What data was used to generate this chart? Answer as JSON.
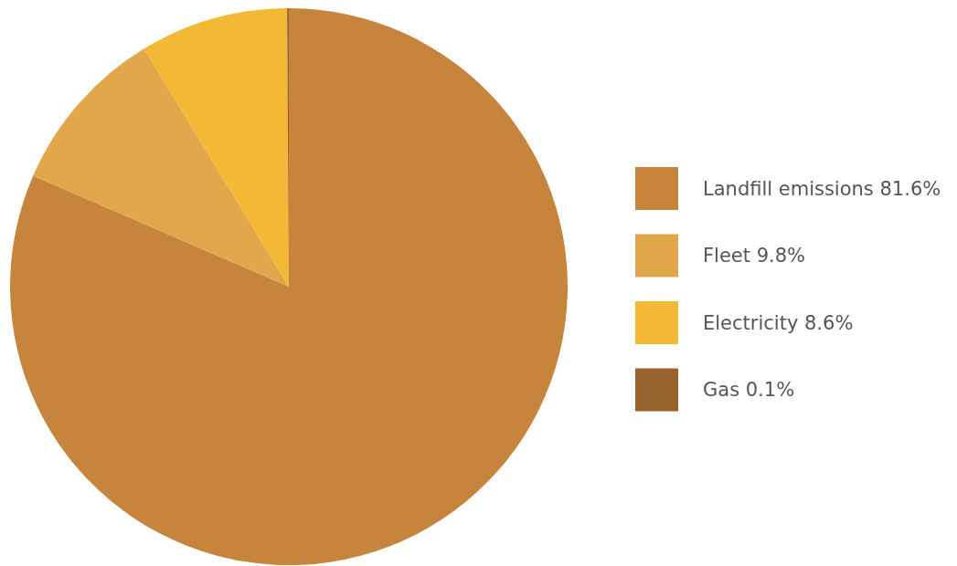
{
  "chart_data": {
    "type": "pie",
    "categories": [
      "Landfill emissions 81.6%",
      "Fleet 9.8%",
      "Electricity 8.6%",
      "Gas 0.1%"
    ],
    "values": [
      81.6,
      9.8,
      8.6,
      0.1
    ],
    "colors": [
      "#c6843c",
      "#e2a64b",
      "#f3b935",
      "#97622b"
    ],
    "legend": "right"
  }
}
